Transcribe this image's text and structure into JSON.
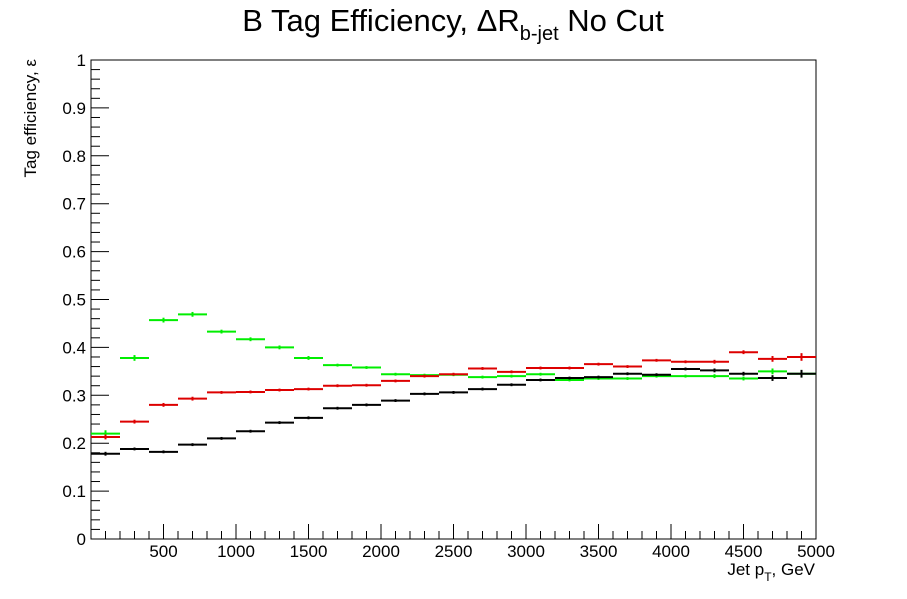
{
  "chart_data": {
    "type": "scatter",
    "title": "B Tag Efficiency, ΔR",
    "title_subscript": "b-jet",
    "title_suffix": " No Cut",
    "xlabel": "Jet p",
    "xlabel_subscript": "T",
    "xlabel_suffix": ", GeV",
    "ylabel": "Tag efficiency, ε",
    "xlim": [
      0,
      5000
    ],
    "ylim": [
      0,
      1
    ],
    "x_ticks": [
      500,
      1000,
      1500,
      2000,
      2500,
      3000,
      3500,
      4000,
      4500,
      5000
    ],
    "y_ticks": [
      0,
      0.1,
      0.2,
      0.3,
      0.4,
      0.5,
      0.6,
      0.7,
      0.8,
      0.9,
      1
    ],
    "y_tick_labels": [
      "0",
      "0.1",
      "0.2",
      "0.3",
      "0.4",
      "0.5",
      "0.6",
      "0.7",
      "0.8",
      "0.9",
      "1"
    ],
    "grid": false,
    "bin_width": 200,
    "x": [
      100,
      300,
      500,
      700,
      900,
      1100,
      1300,
      1500,
      1700,
      1900,
      2100,
      2300,
      2500,
      2700,
      2900,
      3100,
      3300,
      3500,
      3700,
      3900,
      4100,
      4300,
      4500,
      4700,
      4900
    ],
    "series": [
      {
        "color": "#00ee00",
        "values": [
          0.22,
          0.378,
          0.457,
          0.469,
          0.433,
          0.417,
          0.4,
          0.378,
          0.363,
          0.358,
          0.344,
          0.342,
          0.343,
          0.338,
          0.34,
          0.344,
          0.332,
          0.335,
          0.335,
          0.34,
          0.34,
          0.34,
          0.335,
          0.35,
          0.345
        ],
        "errors": [
          0.007,
          0.006,
          0.005,
          0.005,
          0.004,
          0.004,
          0.004,
          0.004,
          0.003,
          0.003,
          0.003,
          0.003,
          0.003,
          0.003,
          0.003,
          0.003,
          0.003,
          0.003,
          0.003,
          0.003,
          0.003,
          0.004,
          0.004,
          0.006,
          0.008
        ]
      },
      {
        "color": "#dd0000",
        "values": [
          0.213,
          0.245,
          0.28,
          0.293,
          0.306,
          0.307,
          0.311,
          0.313,
          0.32,
          0.321,
          0.33,
          0.34,
          0.344,
          0.356,
          0.349,
          0.357,
          0.357,
          0.365,
          0.36,
          0.373,
          0.37,
          0.37,
          0.39,
          0.376,
          0.38
        ],
        "errors": [
          0.005,
          0.004,
          0.004,
          0.004,
          0.003,
          0.003,
          0.003,
          0.003,
          0.003,
          0.003,
          0.003,
          0.003,
          0.003,
          0.003,
          0.003,
          0.003,
          0.003,
          0.003,
          0.003,
          0.003,
          0.003,
          0.004,
          0.004,
          0.006,
          0.008
        ]
      },
      {
        "color": "#000000",
        "values": [
          0.178,
          0.188,
          0.182,
          0.197,
          0.21,
          0.225,
          0.243,
          0.253,
          0.273,
          0.28,
          0.289,
          0.303,
          0.306,
          0.313,
          0.322,
          0.332,
          0.336,
          0.338,
          0.345,
          0.343,
          0.355,
          0.352,
          0.345,
          0.336,
          0.345
        ],
        "errors": [
          0.004,
          0.003,
          0.003,
          0.003,
          0.003,
          0.003,
          0.003,
          0.003,
          0.003,
          0.003,
          0.003,
          0.003,
          0.003,
          0.003,
          0.003,
          0.003,
          0.003,
          0.003,
          0.003,
          0.003,
          0.003,
          0.004,
          0.004,
          0.006,
          0.008
        ]
      }
    ]
  }
}
